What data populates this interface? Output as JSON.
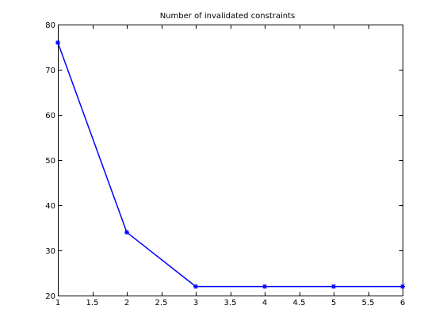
{
  "chart_data": {
    "type": "line",
    "title": "Number of invalidated constraints",
    "xlabel": "",
    "ylabel": "",
    "x": [
      1,
      2,
      3,
      4,
      5,
      6
    ],
    "series": [
      {
        "values": [
          76,
          34,
          22,
          22,
          22,
          22
        ],
        "color": "#0000ff",
        "marker": "asterisk"
      }
    ],
    "xlim": [
      1,
      6
    ],
    "ylim": [
      20,
      80
    ],
    "xticks": [
      1,
      1.5,
      2,
      2.5,
      3,
      3.5,
      4,
      4.5,
      5,
      5.5,
      6
    ],
    "xtick_labels": [
      "1",
      "1.5",
      "2",
      "2.5",
      "3",
      "3.5",
      "4",
      "4.5",
      "5",
      "5.5",
      "6"
    ],
    "yticks": [
      20,
      30,
      40,
      50,
      60,
      70,
      80
    ],
    "ytick_labels": [
      "20",
      "30",
      "40",
      "50",
      "60",
      "70",
      "80"
    ],
    "grid": false,
    "legend": "none"
  }
}
